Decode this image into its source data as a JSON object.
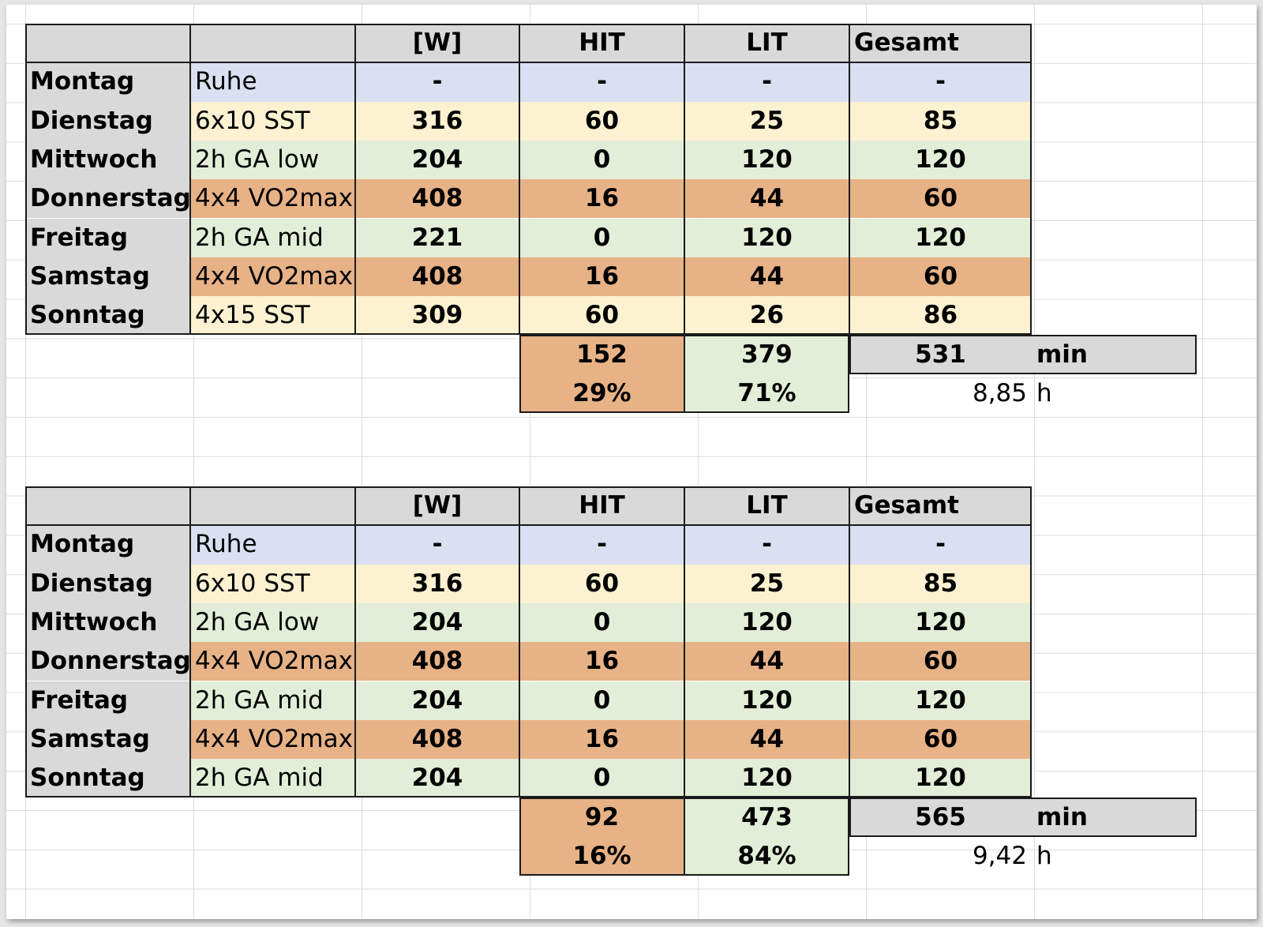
{
  "colors": {
    "header": "#d9d9d9",
    "rest": "#dae0f2",
    "sst": "#fcf1d0",
    "endurance": "#e3eed9",
    "vo2max": "#e7b286",
    "total": "#d9d9d9"
  },
  "tables": [
    {
      "headers": [
        "",
        "",
        "[W]",
        "HIT",
        "LIT",
        "Gesamt"
      ],
      "rows": [
        {
          "day": "Montag",
          "workout": "Ruhe",
          "watts": "-",
          "hit": "-",
          "lit": "-",
          "total": "-",
          "type": "rest"
        },
        {
          "day": "Dienstag",
          "workout": "6x10 SST",
          "watts": "316",
          "hit": "60",
          "lit": "25",
          "total": "85",
          "type": "sst"
        },
        {
          "day": "Mittwoch",
          "workout": "2h GA low",
          "watts": "204",
          "hit": "0",
          "lit": "120",
          "total": "120",
          "type": "endurance"
        },
        {
          "day": "Donnerstag",
          "workout": "4x4 VO2max",
          "watts": "408",
          "hit": "16",
          "lit": "44",
          "total": "60",
          "type": "vo2max"
        },
        {
          "day": "Freitag",
          "workout": "2h GA mid",
          "watts": "221",
          "hit": "0",
          "lit": "120",
          "total": "120",
          "type": "endurance"
        },
        {
          "day": "Samstag",
          "workout": "4x4 VO2max",
          "watts": "408",
          "hit": "16",
          "lit": "44",
          "total": "60",
          "type": "vo2max"
        },
        {
          "day": "Sonntag",
          "workout": "4x15 SST",
          "watts": "309",
          "hit": "60",
          "lit": "26",
          "total": "86",
          "type": "sst"
        }
      ],
      "summary": {
        "hit_sum": "152",
        "lit_sum": "379",
        "total_sum": "531",
        "unit": "min",
        "hit_pct": "29%",
        "lit_pct": "71%",
        "hours": "8,85",
        "hours_unit": "h"
      }
    },
    {
      "headers": [
        "",
        "",
        "[W]",
        "HIT",
        "LIT",
        "Gesamt"
      ],
      "rows": [
        {
          "day": "Montag",
          "workout": "Ruhe",
          "watts": "-",
          "hit": "-",
          "lit": "-",
          "total": "-",
          "type": "rest"
        },
        {
          "day": "Dienstag",
          "workout": "6x10 SST",
          "watts": "316",
          "hit": "60",
          "lit": "25",
          "total": "85",
          "type": "sst"
        },
        {
          "day": "Mittwoch",
          "workout": "2h GA low",
          "watts": "204",
          "hit": "0",
          "lit": "120",
          "total": "120",
          "type": "endurance"
        },
        {
          "day": "Donnerstag",
          "workout": "4x4 VO2max",
          "watts": "408",
          "hit": "16",
          "lit": "44",
          "total": "60",
          "type": "vo2max"
        },
        {
          "day": "Freitag",
          "workout": "2h GA mid",
          "watts": "204",
          "hit": "0",
          "lit": "120",
          "total": "120",
          "type": "endurance"
        },
        {
          "day": "Samstag",
          "workout": "4x4 VO2max",
          "watts": "408",
          "hit": "16",
          "lit": "44",
          "total": "60",
          "type": "vo2max"
        },
        {
          "day": "Sonntag",
          "workout": "2h GA mid",
          "watts": "204",
          "hit": "0",
          "lit": "120",
          "total": "120",
          "type": "endurance"
        }
      ],
      "summary": {
        "hit_sum": "92",
        "lit_sum": "473",
        "total_sum": "565",
        "unit": "min",
        "hit_pct": "16%",
        "lit_pct": "84%",
        "hours": "9,42",
        "hours_unit": "h"
      }
    }
  ]
}
